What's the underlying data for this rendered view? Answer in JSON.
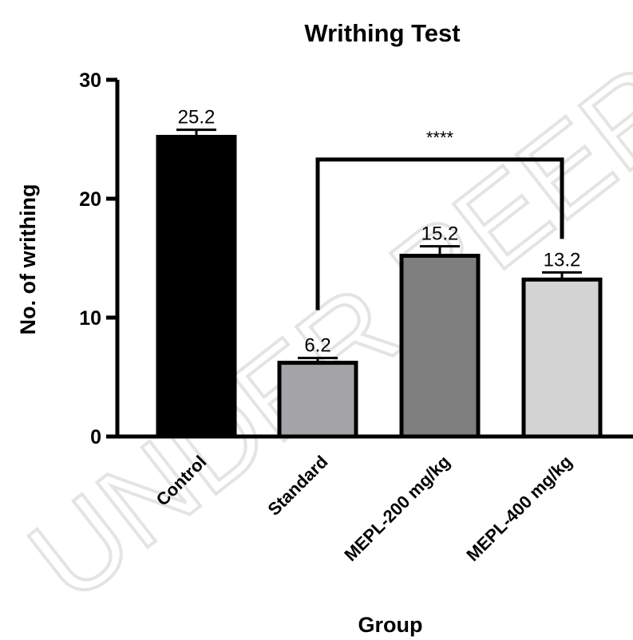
{
  "chart_data": {
    "type": "bar",
    "title": "Writhing Test",
    "xlabel": "Group",
    "ylabel": "No. of writhing",
    "categories": [
      "Control",
      "Standard",
      "MEPL-200 mg/kg",
      "MEPL-400 mg/kg"
    ],
    "values": [
      25.2,
      6.2,
      15.2,
      13.2
    ],
    "value_labels": [
      "25.2",
      "6.2",
      "15.2",
      "13.2"
    ],
    "errors": [
      0.6,
      0.4,
      0.8,
      0.6
    ],
    "bar_colors": [
      "#000000",
      "#a4a3a8",
      "#7f7f7f",
      "#d3d3d3"
    ],
    "ylim": [
      0,
      30
    ],
    "yticks": [
      0,
      10,
      20,
      30
    ],
    "ytick_labels": [
      "0",
      "10",
      "20",
      "30"
    ],
    "grid": false,
    "significance": {
      "from": "Standard",
      "to": "MEPL-400 mg/kg",
      "label": "****",
      "level": 23.3
    }
  },
  "watermark": "UNDER PEER REVIEW"
}
